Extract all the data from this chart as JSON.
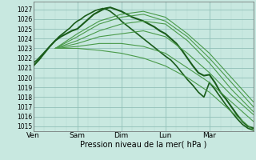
{
  "xlabel": "Pression niveau de la mer( hPa )",
  "background_color": "#c8e8e0",
  "grid_color_major": "#90c0b8",
  "grid_color_minor": "#b0d8d0",
  "line_color_dark": "#1a5c1a",
  "line_color_light": "#4a9a4a",
  "ylim": [
    1014.5,
    1027.8
  ],
  "yticks": [
    1015,
    1016,
    1017,
    1018,
    1019,
    1020,
    1021,
    1022,
    1023,
    1024,
    1025,
    1026,
    1027
  ],
  "day_labels": [
    "Ven",
    "Sam",
    "Dim",
    "Lun",
    "Mar"
  ],
  "day_positions": [
    0,
    24,
    48,
    72,
    96
  ],
  "total_hours": 120,
  "series": [
    {
      "x": [
        0,
        3,
        6,
        9,
        12,
        15,
        18,
        21,
        24,
        27,
        30,
        33,
        36,
        39,
        42,
        45,
        48,
        51,
        54,
        57,
        60,
        63,
        66,
        69,
        72,
        75,
        78,
        81,
        84,
        87,
        90,
        93,
        96,
        99,
        102,
        105,
        108,
        111,
        114,
        117,
        120
      ],
      "y": [
        1021.2,
        1021.8,
        1022.5,
        1023.2,
        1023.8,
        1024.2,
        1024.5,
        1024.8,
        1025.0,
        1025.5,
        1026.0,
        1026.5,
        1026.8,
        1027.1,
        1027.2,
        1027.0,
        1026.8,
        1026.5,
        1026.2,
        1026.0,
        1025.8,
        1025.5,
        1025.2,
        1024.8,
        1024.5,
        1024.0,
        1023.5,
        1022.8,
        1022.0,
        1021.2,
        1020.5,
        1020.2,
        1020.3,
        1019.5,
        1018.5,
        1017.8,
        1017.0,
        1016.2,
        1015.5,
        1015.0,
        1014.8
      ],
      "style": "dark",
      "lw": 1.5
    },
    {
      "x": [
        0,
        2,
        4,
        6,
        8,
        10,
        12,
        14,
        16,
        18,
        20,
        22,
        24,
        26,
        28,
        30,
        32,
        34,
        36,
        38,
        40,
        42,
        44,
        46,
        48,
        50,
        52,
        54,
        56,
        58,
        60,
        62,
        64,
        66,
        68,
        70,
        72,
        75,
        78,
        81,
        84,
        87,
        90,
        93,
        96,
        99,
        102,
        105,
        108,
        111,
        114,
        117,
        120
      ],
      "y": [
        1021.5,
        1021.8,
        1022.2,
        1022.6,
        1023.0,
        1023.4,
        1023.8,
        1024.2,
        1024.5,
        1024.8,
        1025.1,
        1025.5,
        1025.8,
        1026.0,
        1026.3,
        1026.5,
        1026.7,
        1026.9,
        1027.0,
        1027.1,
        1027.0,
        1026.8,
        1026.5,
        1026.2,
        1025.8,
        1025.5,
        1025.2,
        1024.9,
        1024.6,
        1024.3,
        1024.0,
        1023.7,
        1023.4,
        1023.1,
        1022.8,
        1022.5,
        1022.2,
        1021.8,
        1021.2,
        1020.5,
        1019.8,
        1019.2,
        1018.5,
        1018.0,
        1019.5,
        1018.8,
        1018.0,
        1017.2,
        1016.5,
        1015.8,
        1015.2,
        1014.8,
        1014.6
      ],
      "style": "dark",
      "lw": 1.2
    },
    {
      "x": [
        12,
        24,
        36,
        48,
        60,
        72,
        84,
        96,
        108,
        120
      ],
      "y": [
        1023.0,
        1023.0,
        1022.8,
        1022.5,
        1022.0,
        1021.2,
        1020.0,
        1018.5,
        1016.5,
        1014.6
      ],
      "style": "light",
      "lw": 0.8
    },
    {
      "x": [
        12,
        24,
        36,
        48,
        60,
        72,
        84,
        96,
        108,
        120
      ],
      "y": [
        1023.0,
        1023.2,
        1023.5,
        1023.5,
        1023.2,
        1022.5,
        1021.0,
        1019.5,
        1017.5,
        1015.5
      ],
      "style": "light",
      "lw": 0.8
    },
    {
      "x": [
        12,
        24,
        36,
        48,
        60,
        72,
        84,
        96,
        108,
        120
      ],
      "y": [
        1023.0,
        1023.5,
        1024.2,
        1024.5,
        1024.8,
        1024.2,
        1022.5,
        1020.5,
        1018.2,
        1016.2
      ],
      "style": "light",
      "lw": 0.8
    },
    {
      "x": [
        12,
        24,
        36,
        48,
        60,
        72,
        84,
        96,
        108,
        120
      ],
      "y": [
        1023.0,
        1023.8,
        1024.8,
        1025.5,
        1025.8,
        1025.5,
        1023.8,
        1021.5,
        1018.8,
        1016.5
      ],
      "style": "light",
      "lw": 0.8
    },
    {
      "x": [
        12,
        24,
        36,
        48,
        60,
        72,
        84,
        96,
        108,
        120
      ],
      "y": [
        1023.0,
        1024.2,
        1025.5,
        1026.2,
        1026.5,
        1025.8,
        1024.2,
        1022.0,
        1019.5,
        1017.0
      ],
      "style": "light",
      "lw": 0.8
    },
    {
      "x": [
        12,
        24,
        36,
        48,
        60,
        72,
        84,
        96,
        108,
        120
      ],
      "y": [
        1023.0,
        1024.5,
        1025.8,
        1026.5,
        1026.8,
        1026.2,
        1024.5,
        1022.5,
        1020.0,
        1017.5
      ],
      "style": "light",
      "lw": 0.8
    }
  ]
}
